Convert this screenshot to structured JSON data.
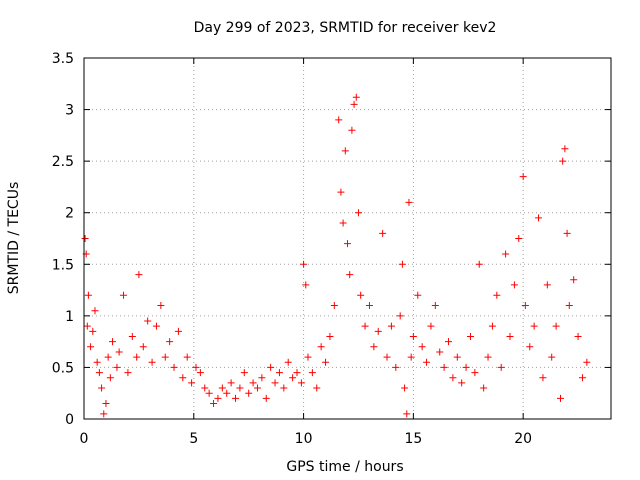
{
  "chart_data": {
    "type": "scatter",
    "title": "Day 299 of 2023, SRMTID for receiver kev2",
    "xlabel": "GPS time / hours",
    "ylabel": "SRMTID / TECUs",
    "xlim": [
      0,
      24
    ],
    "ylim": [
      0,
      3.5
    ],
    "xticks": [
      0,
      5,
      10,
      15,
      20
    ],
    "yticks": [
      0,
      0.5,
      1,
      1.5,
      2,
      2.5,
      3,
      3.5
    ],
    "xtick_labels": [
      "0",
      "5",
      "10",
      "15",
      "20"
    ],
    "ytick_labels": [
      "0",
      "0.5",
      "1",
      "1.5",
      "2",
      "2.5",
      "3",
      "3.5"
    ],
    "grid": true,
    "marker": "+",
    "color": "#ff0000",
    "series": [
      {
        "name": "kev2",
        "points": [
          [
            0.05,
            1.75
          ],
          [
            0.1,
            1.6
          ],
          [
            0.15,
            0.9
          ],
          [
            0.2,
            1.2
          ],
          [
            0.3,
            0.7
          ],
          [
            0.4,
            0.85
          ],
          [
            0.5,
            1.05
          ],
          [
            0.6,
            0.55
          ],
          [
            0.7,
            0.45
          ],
          [
            0.8,
            0.3
          ],
          [
            0.9,
            0.05
          ],
          [
            1.0,
            0.15
          ],
          [
            1.1,
            0.6
          ],
          [
            1.2,
            0.4
          ],
          [
            1.3,
            0.75
          ],
          [
            1.5,
            0.5
          ],
          [
            1.6,
            0.65
          ],
          [
            1.8,
            1.2
          ],
          [
            2.0,
            0.45
          ],
          [
            2.2,
            0.8
          ],
          [
            2.4,
            0.6
          ],
          [
            2.5,
            1.4
          ],
          [
            2.7,
            0.7
          ],
          [
            2.9,
            0.95
          ],
          [
            3.1,
            0.55
          ],
          [
            3.3,
            0.9
          ],
          [
            3.5,
            1.1
          ],
          [
            3.7,
            0.6
          ],
          [
            3.9,
            0.75
          ],
          [
            4.1,
            0.5
          ],
          [
            4.3,
            0.85
          ],
          [
            4.5,
            0.4
          ],
          [
            4.7,
            0.6
          ],
          [
            4.9,
            0.35
          ],
          [
            5.1,
            0.5
          ],
          [
            5.3,
            0.45
          ],
          [
            5.5,
            0.3
          ],
          [
            5.7,
            0.25
          ],
          [
            5.9,
            0.15
          ],
          [
            6.1,
            0.2
          ],
          [
            6.3,
            0.3
          ],
          [
            6.5,
            0.25
          ],
          [
            6.7,
            0.35
          ],
          [
            6.9,
            0.2
          ],
          [
            7.1,
            0.3
          ],
          [
            7.3,
            0.45
          ],
          [
            7.5,
            0.25
          ],
          [
            7.7,
            0.35
          ],
          [
            7.9,
            0.3
          ],
          [
            8.1,
            0.4
          ],
          [
            8.3,
            0.2
          ],
          [
            8.5,
            0.5
          ],
          [
            8.7,
            0.35
          ],
          [
            8.9,
            0.45
          ],
          [
            9.1,
            0.3
          ],
          [
            9.3,
            0.55
          ],
          [
            9.5,
            0.4
          ],
          [
            9.7,
            0.45
          ],
          [
            9.9,
            0.35
          ],
          [
            10.0,
            1.5
          ],
          [
            10.1,
            1.3
          ],
          [
            10.2,
            0.6
          ],
          [
            10.4,
            0.45
          ],
          [
            10.6,
            0.3
          ],
          [
            10.8,
            0.7
          ],
          [
            11.0,
            0.55
          ],
          [
            11.2,
            0.8
          ],
          [
            11.4,
            1.1
          ],
          [
            11.6,
            2.9
          ],
          [
            11.7,
            2.2
          ],
          [
            11.8,
            1.9
          ],
          [
            11.9,
            2.6
          ],
          [
            12.0,
            1.7
          ],
          [
            12.1,
            1.4
          ],
          [
            12.2,
            2.8
          ],
          [
            12.3,
            3.05
          ],
          [
            12.4,
            3.12
          ],
          [
            12.5,
            2.0
          ],
          [
            12.6,
            1.2
          ],
          [
            12.8,
            0.9
          ],
          [
            13.0,
            1.1
          ],
          [
            13.2,
            0.7
          ],
          [
            13.4,
            0.85
          ],
          [
            13.6,
            1.8
          ],
          [
            13.8,
            0.6
          ],
          [
            14.0,
            0.9
          ],
          [
            14.2,
            0.5
          ],
          [
            14.4,
            1.0
          ],
          [
            14.5,
            1.5
          ],
          [
            14.6,
            0.3
          ],
          [
            14.7,
            0.05
          ],
          [
            14.8,
            2.1
          ],
          [
            14.9,
            0.6
          ],
          [
            15.0,
            0.8
          ],
          [
            15.2,
            1.2
          ],
          [
            15.4,
            0.7
          ],
          [
            15.6,
            0.55
          ],
          [
            15.8,
            0.9
          ],
          [
            16.0,
            1.1
          ],
          [
            16.2,
            0.65
          ],
          [
            16.4,
            0.5
          ],
          [
            16.6,
            0.75
          ],
          [
            16.8,
            0.4
          ],
          [
            17.0,
            0.6
          ],
          [
            17.2,
            0.35
          ],
          [
            17.4,
            0.5
          ],
          [
            17.6,
            0.8
          ],
          [
            17.8,
            0.45
          ],
          [
            18.0,
            1.5
          ],
          [
            18.2,
            0.3
          ],
          [
            18.4,
            0.6
          ],
          [
            18.6,
            0.9
          ],
          [
            18.8,
            1.2
          ],
          [
            19.0,
            0.5
          ],
          [
            19.2,
            1.6
          ],
          [
            19.4,
            0.8
          ],
          [
            19.6,
            1.3
          ],
          [
            19.8,
            1.75
          ],
          [
            20.0,
            2.35
          ],
          [
            20.1,
            1.1
          ],
          [
            20.3,
            0.7
          ],
          [
            20.5,
            0.9
          ],
          [
            20.7,
            1.95
          ],
          [
            20.9,
            0.4
          ],
          [
            21.1,
            1.3
          ],
          [
            21.3,
            0.6
          ],
          [
            21.5,
            0.9
          ],
          [
            21.7,
            0.2
          ],
          [
            21.8,
            2.5
          ],
          [
            21.9,
            2.62
          ],
          [
            22.0,
            1.8
          ],
          [
            22.1,
            1.1
          ],
          [
            22.3,
            1.35
          ],
          [
            22.5,
            0.8
          ],
          [
            22.7,
            0.4
          ],
          [
            22.9,
            0.55
          ]
        ]
      }
    ]
  }
}
